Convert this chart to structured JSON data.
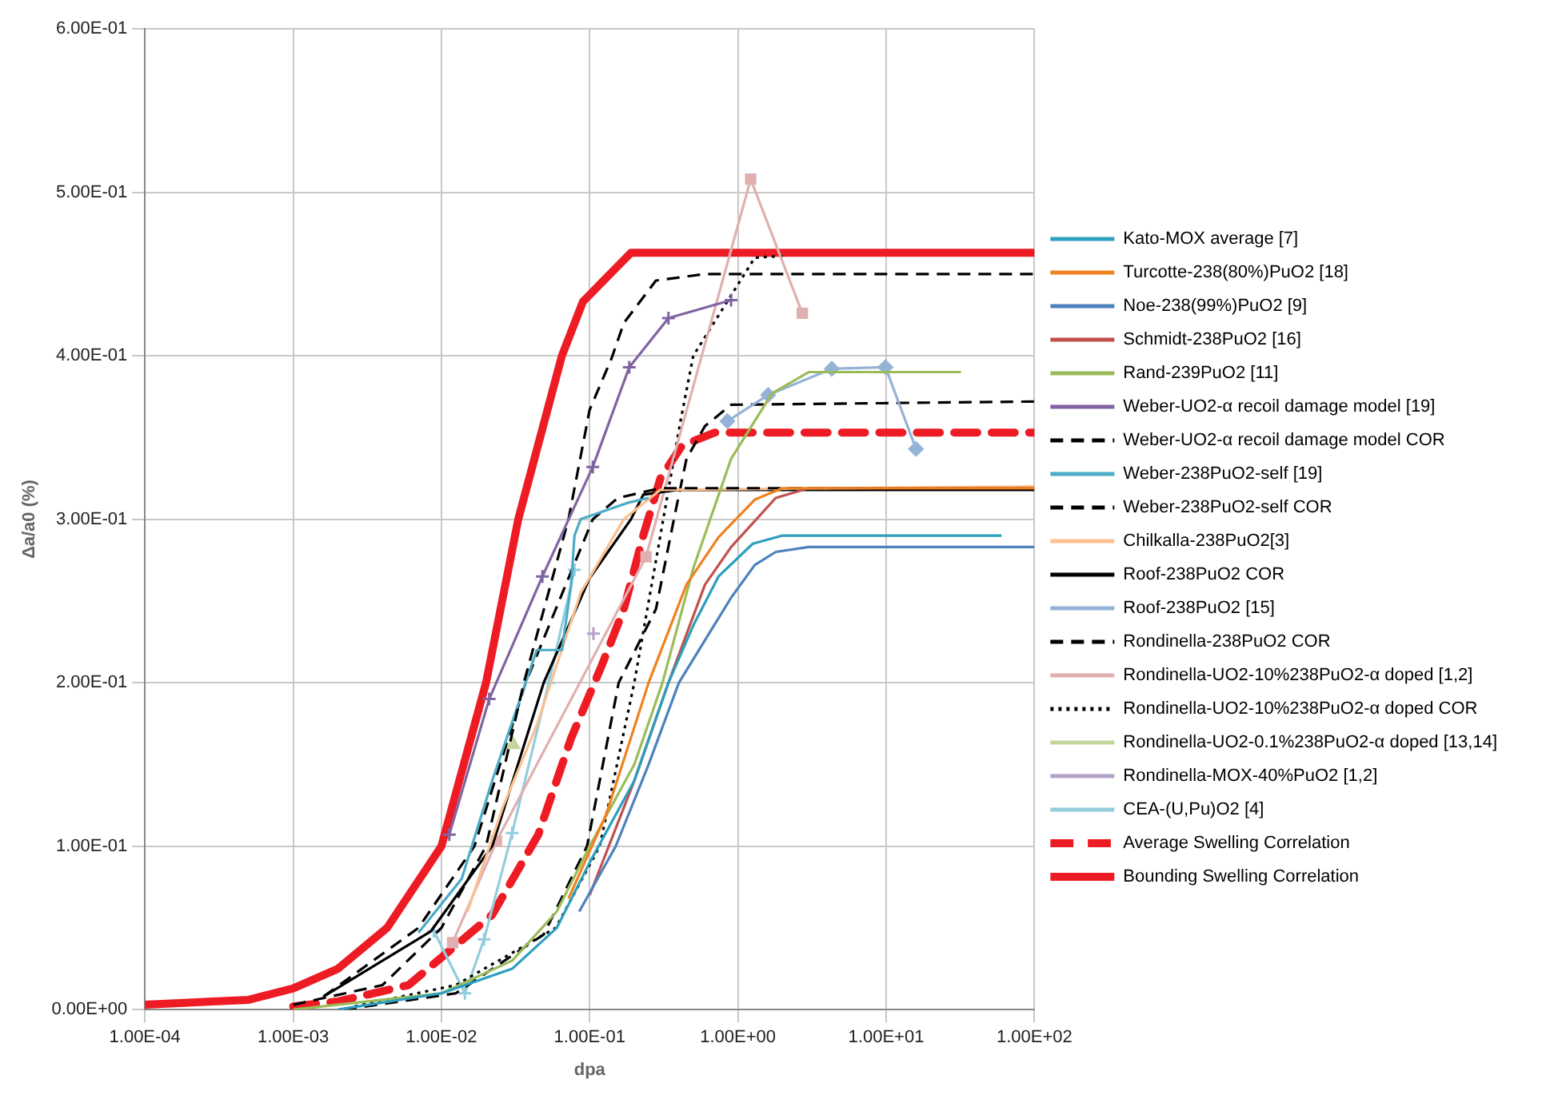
{
  "chart_data": {
    "type": "line",
    "xlabel": "dpa",
    "ylabel": "Δa/a0 (%)",
    "log": "x",
    "grid": true,
    "legend": "right",
    "xlim": [
      0.0001,
      100
    ],
    "xticks": [
      {
        "value": 0.0001,
        "label": "1.00E-04"
      },
      {
        "value": 0.001,
        "label": "1.00E-03"
      },
      {
        "value": 0.01,
        "label": "1.00E-02"
      },
      {
        "value": 0.1,
        "label": "1.00E-01"
      },
      {
        "value": 1,
        "label": "1.00E+00"
      },
      {
        "value": 10,
        "label": "1.00E+01"
      },
      {
        "value": 100,
        "label": "1.00E+02"
      }
    ],
    "ylim": [
      0,
      0.6
    ],
    "yticks": [
      {
        "value": 0,
        "label": "0.00E+00"
      },
      {
        "value": 0.1,
        "label": "1.00E-01"
      },
      {
        "value": 0.2,
        "label": "2.00E-01"
      },
      {
        "value": 0.3,
        "label": "3.00E-01"
      },
      {
        "value": 0.4,
        "label": "4.00E-01"
      },
      {
        "value": 0.5,
        "label": "5.00E-01"
      },
      {
        "value": 0.6,
        "label": "6.00E-01"
      }
    ],
    "series": [
      {
        "name": "Kato-MOX average [7]",
        "color": "#2c9fbd",
        "line_style": "solid",
        "marker": "none",
        "x": [
          0.002,
          0.01,
          0.03,
          0.06,
          0.1,
          0.2,
          0.34,
          0.5,
          0.74,
          1.26,
          2,
          60
        ],
        "values": [
          0,
          0.01,
          0.025,
          0.05,
          0.09,
          0.14,
          0.2,
          0.235,
          0.265,
          0.285,
          0.29,
          0.29
        ]
      },
      {
        "name": "Turcotte-238(80%)PuO2 [18]",
        "color": "#f0811f",
        "line_style": "solid",
        "marker": "none",
        "x": [
          0.072,
          0.13,
          0.25,
          0.45,
          0.74,
          1.3,
          2,
          100
        ],
        "values": [
          0.068,
          0.12,
          0.2,
          0.26,
          0.289,
          0.312,
          0.319,
          0.319
        ]
      },
      {
        "name": "Noe-238(99%)PuO2 [9]",
        "color": "#4f81bd",
        "line_style": "solid",
        "marker": "none",
        "x": [
          0.085,
          0.15,
          0.25,
          0.4,
          0.6,
          0.9,
          1.3,
          1.8,
          3,
          100
        ],
        "values": [
          0.06,
          0.1,
          0.15,
          0.2,
          0.226,
          0.252,
          0.272,
          0.28,
          0.283,
          0.283
        ]
      },
      {
        "name": "Schmidt-238PuO2 [16]",
        "color": "#c0504d",
        "line_style": "solid",
        "marker": "none",
        "x": [
          0.1,
          0.2,
          0.34,
          0.6,
          0.9,
          1.8,
          3,
          100
        ],
        "values": [
          0.07,
          0.14,
          0.2,
          0.26,
          0.283,
          0.313,
          0.319,
          0.319
        ]
      },
      {
        "name": "Rand-239PuO2 [11]",
        "color": "#9bbb59",
        "line_style": "solid",
        "marker": "none",
        "x": [
          0.001,
          0.01,
          0.03,
          0.06,
          0.1,
          0.2,
          0.31,
          0.5,
          0.9,
          1.7,
          3,
          32
        ],
        "values": [
          0,
          0.01,
          0.03,
          0.06,
          0.1,
          0.15,
          0.2,
          0.27,
          0.337,
          0.377,
          0.39,
          0.39
        ]
      },
      {
        "name": "Weber-UO2-α recoil damage model [19]",
        "color": "#8064a2",
        "line_style": "solid",
        "marker": "cross",
        "x": [
          0.0113,
          0.021,
          0.048,
          0.105,
          0.185,
          0.34,
          0.9
        ],
        "values": [
          0.107,
          0.19,
          0.265,
          0.332,
          0.393,
          0.423,
          0.434
        ]
      },
      {
        "name": "Weber-UO2-α recoil damage model COR",
        "color": "#000000",
        "line_style": "dashed",
        "marker": "none",
        "x": [
          0.001,
          0.004,
          0.01,
          0.02,
          0.036,
          0.072,
          0.1,
          0.14,
          0.17,
          0.28,
          0.6,
          100
        ],
        "values": [
          0.003,
          0.015,
          0.05,
          0.1,
          0.2,
          0.3,
          0.367,
          0.398,
          0.42,
          0.446,
          0.45,
          0.45
        ]
      },
      {
        "name": "Weber-238PuO2-self [19]",
        "color": "#4bacc6",
        "line_style": "solid",
        "marker": "none",
        "x": [
          0.007,
          0.0137,
          0.022,
          0.044,
          0.065,
          0.075,
          0.079,
          0.087,
          0.18,
          0.25
        ],
        "values": [
          0.047,
          0.08,
          0.14,
          0.22,
          0.22,
          0.26,
          0.29,
          0.3,
          0.31,
          0.313
        ]
      },
      {
        "name": "Weber-238PuO2-self COR",
        "color": "#000000",
        "line_style": "dashed",
        "marker": "none",
        "x": [
          0.0016,
          0.007,
          0.0167,
          0.037,
          0.072,
          0.105,
          0.155,
          0.3,
          100
        ],
        "values": [
          0.008,
          0.05,
          0.1,
          0.2,
          0.264,
          0.3,
          0.313,
          0.319,
          0.319
        ]
      },
      {
        "name": "Chilkalla-238PuO2[3]",
        "color": "#fac090",
        "line_style": "solid",
        "marker": "none",
        "x": [
          0.015,
          0.026,
          0.044,
          0.087,
          0.17,
          0.3,
          100
        ],
        "values": [
          0.06,
          0.124,
          0.174,
          0.255,
          0.3,
          0.318,
          0.32
        ]
      },
      {
        "name": "Roof-238PuO2 COR",
        "color": "#000000",
        "line_style": "solid",
        "marker": "none",
        "x": [
          0.0016,
          0.0085,
          0.022,
          0.049,
          0.1,
          0.19,
          0.23,
          0.4,
          100
        ],
        "values": [
          0.008,
          0.048,
          0.1,
          0.2,
          0.264,
          0.3,
          0.315,
          0.318,
          0.318
        ]
      },
      {
        "name": "Roof-238PuO2 [15]",
        "color": "#95b3d7",
        "line_style": "solid",
        "marker": "diamond",
        "x": [
          0.85,
          1.6,
          4.3,
          9.9,
          15.9
        ],
        "values": [
          0.36,
          0.376,
          0.392,
          0.393,
          0.343
        ]
      },
      {
        "name": "Rondinella-238PuO2 COR",
        "color": "#000000",
        "line_style": "dashed",
        "marker": "none",
        "x": [
          0.0022,
          0.0125,
          0.049,
          0.096,
          0.157,
          0.28,
          0.37,
          0.45,
          0.6,
          0.9,
          100
        ],
        "values": [
          0,
          0.01,
          0.046,
          0.1,
          0.2,
          0.245,
          0.3,
          0.337,
          0.357,
          0.37,
          0.372
        ]
      },
      {
        "name": "Rondinella-UO2-10%238PuO2-α doped [1,2]",
        "color": "#e0b0b0",
        "line_style": "solid",
        "marker": "square",
        "x": [
          0.0119,
          0.0235,
          0.24,
          1.22,
          2.72
        ],
        "values": [
          0.041,
          0.103,
          0.277,
          0.508,
          0.426
        ]
      },
      {
        "name": "Rondinella-UO2-10%238PuO2-α doped COR",
        "color": "#000000",
        "line_style": "dotted",
        "marker": "none",
        "x": [
          0.0026,
          0.0125,
          0.059,
          0.117,
          0.2,
          0.3,
          0.41,
          0.5,
          1.3,
          2
        ],
        "values": [
          0.002,
          0.015,
          0.05,
          0.1,
          0.2,
          0.29,
          0.36,
          0.4,
          0.46,
          0.461
        ]
      },
      {
        "name": "Rondinella-UO2-0.1%238PuO2-α doped [13,14]",
        "color": "#c3d69b",
        "line_style": "solid",
        "marker": "triangle",
        "x": [
          0.0305
        ],
        "values": [
          0.162
        ]
      },
      {
        "name": "Rondinella-MOX-40%PuO2 [1,2]",
        "color": "#b3a2c7",
        "line_style": "solid",
        "marker": "cross",
        "x": [
          0.106
        ],
        "values": [
          0.23
        ]
      },
      {
        "name": "CEA-(U,Pu)O2 [4]",
        "color": "#93cddd",
        "line_style": "solid",
        "marker": "cross",
        "x": [
          0.0089,
          0.0144,
          0.0194,
          0.03,
          0.053,
          0.079
        ],
        "values": [
          0.048,
          0.01,
          0.043,
          0.108,
          0.2,
          0.269
        ]
      },
      {
        "name": "Average Swelling Correlation",
        "color": "#ed1c24",
        "line_style": "dashed",
        "marker": "none",
        "x": [
          0.001,
          0.002,
          0.006,
          0.022,
          0.045,
          0.075,
          0.12,
          0.17,
          0.23,
          0.3,
          0.42,
          0.7,
          100
        ],
        "values": [
          0.002,
          0.005,
          0.015,
          0.058,
          0.107,
          0.166,
          0.21,
          0.245,
          0.29,
          0.325,
          0.345,
          0.353,
          0.353
        ]
      },
      {
        "name": "Bounding Swelling Correlation",
        "color": "#ed1c24",
        "line_style": "solid",
        "marker": "none",
        "x": [
          0.0001,
          0.0005,
          0.001,
          0.002,
          0.0043,
          0.01,
          0.02,
          0.033,
          0.065,
          0.09,
          0.19,
          100
        ],
        "values": [
          0.003,
          0.006,
          0.013,
          0.025,
          0.05,
          0.1,
          0.2,
          0.3,
          0.4,
          0.433,
          0.463,
          0.463
        ]
      }
    ]
  }
}
